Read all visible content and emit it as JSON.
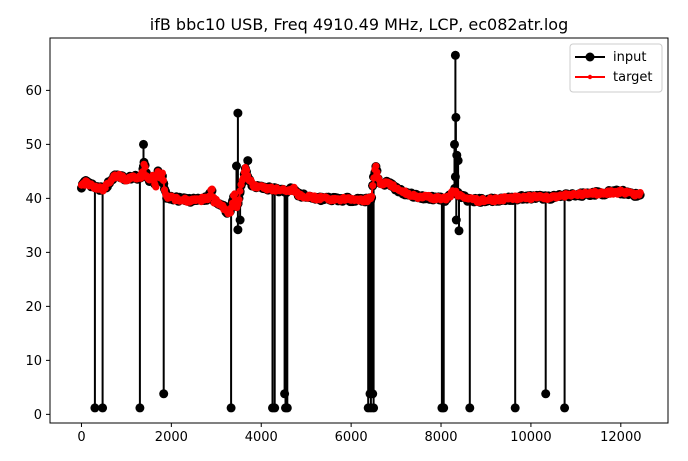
{
  "chart_data": {
    "type": "line",
    "title": "ifB bbc10 USB, Freq 4910.49 MHz, LCP, ec082atr.log",
    "xlabel": "",
    "ylabel": "",
    "xlim": [
      -700,
      13050
    ],
    "ylim": [
      -1.6,
      69.7
    ],
    "xticks": [
      0,
      2000,
      4000,
      6000,
      8000,
      10000,
      12000
    ],
    "xtick_labels": [
      "0",
      "2000",
      "4000",
      "6000",
      "8000",
      "10000",
      "12000"
    ],
    "yticks": [
      0,
      10,
      20,
      30,
      40,
      50,
      60
    ],
    "ytick_labels": [
      "0",
      "10",
      "20",
      "30",
      "40",
      "50",
      "60"
    ],
    "grid": false,
    "legend_position": "top-right",
    "colors": {
      "input": "#000000",
      "target": "#ff0000"
    },
    "series": [
      {
        "name": "input",
        "marker": "large-circle",
        "baseline": [
          [
            0,
            42.3
          ],
          [
            100,
            43
          ],
          [
            200,
            42.5
          ],
          [
            300,
            42
          ],
          [
            400,
            41.8
          ],
          [
            500,
            41.7
          ],
          [
            600,
            42.8
          ],
          [
            700,
            43.8
          ],
          [
            800,
            44.3
          ],
          [
            900,
            43.9
          ],
          [
            1000,
            43.5
          ],
          [
            1100,
            43.8
          ],
          [
            1200,
            43.9
          ],
          [
            1300,
            43.8
          ],
          [
            1350,
            44.5
          ],
          [
            1400,
            46.8
          ],
          [
            1450,
            44
          ],
          [
            1500,
            43.3
          ],
          [
            1600,
            44.2
          ],
          [
            1650,
            42
          ],
          [
            1700,
            44.8
          ],
          [
            1750,
            43.5
          ],
          [
            1800,
            44.5
          ],
          [
            1850,
            41.5
          ],
          [
            1900,
            40.3
          ],
          [
            2000,
            40
          ],
          [
            2200,
            39.8
          ],
          [
            2400,
            39.6
          ],
          [
            2600,
            39.7
          ],
          [
            2800,
            40
          ],
          [
            2900,
            41.5
          ],
          [
            2950,
            39.5
          ],
          [
            3000,
            39.4
          ],
          [
            3100,
            39
          ],
          [
            3200,
            38
          ],
          [
            3300,
            37
          ],
          [
            3350,
            39
          ],
          [
            3400,
            41
          ],
          [
            3450,
            38.5
          ],
          [
            3500,
            39.5
          ],
          [
            3550,
            42.5
          ],
          [
            3600,
            43.5
          ],
          [
            3650,
            45.5
          ],
          [
            3700,
            44
          ],
          [
            3800,
            42.5
          ],
          [
            3900,
            42.3
          ],
          [
            4000,
            42
          ],
          [
            4200,
            41.8
          ],
          [
            4400,
            41.5
          ],
          [
            4600,
            41.3
          ],
          [
            4700,
            42
          ],
          [
            4800,
            40.8
          ],
          [
            5000,
            40.3
          ],
          [
            5200,
            40.1
          ],
          [
            5400,
            39.9
          ],
          [
            5600,
            39.9
          ],
          [
            5800,
            39.8
          ],
          [
            6000,
            39.8
          ],
          [
            6200,
            39.7
          ],
          [
            6350,
            39.7
          ],
          [
            6450,
            40
          ],
          [
            6500,
            44
          ],
          [
            6550,
            46
          ],
          [
            6600,
            43.5
          ],
          [
            6700,
            42.5
          ],
          [
            6800,
            43
          ],
          [
            6900,
            42.5
          ],
          [
            7000,
            41.8
          ],
          [
            7200,
            41
          ],
          [
            7400,
            40.5
          ],
          [
            7600,
            40.2
          ],
          [
            7800,
            40.1
          ],
          [
            8000,
            40
          ],
          [
            8100,
            39.8
          ],
          [
            8200,
            40.5
          ],
          [
            8300,
            41.5
          ],
          [
            8400,
            40.5
          ],
          [
            8500,
            40.2
          ],
          [
            8600,
            39.8
          ],
          [
            8800,
            39.6
          ],
          [
            9000,
            39.7
          ],
          [
            9200,
            39.8
          ],
          [
            9400,
            39.9
          ],
          [
            9600,
            40
          ],
          [
            9800,
            40.2
          ],
          [
            10000,
            40.2
          ],
          [
            10200,
            40.2
          ],
          [
            10400,
            40.2
          ],
          [
            10600,
            40.3
          ],
          [
            10800,
            40.5
          ],
          [
            11000,
            40.6
          ],
          [
            11200,
            40.8
          ],
          [
            11400,
            40.9
          ],
          [
            11600,
            41
          ],
          [
            11800,
            41.1
          ],
          [
            12000,
            41.2
          ],
          [
            12200,
            41
          ],
          [
            12350,
            40.6
          ],
          [
            12450,
            40.7
          ]
        ],
        "spikes": [
          [
            300,
            1.2
          ],
          [
            470,
            1.2
          ],
          [
            1300,
            1.2
          ],
          [
            1380,
            50
          ],
          [
            1830,
            3.8
          ],
          [
            3330,
            1.2
          ],
          [
            3480,
            55.8
          ],
          [
            3450,
            46
          ],
          [
            3480,
            34.2
          ],
          [
            3530,
            36
          ],
          [
            3700,
            47
          ],
          [
            4250,
            1.2
          ],
          [
            4300,
            1.2
          ],
          [
            4520,
            3.8
          ],
          [
            4540,
            1.2
          ],
          [
            4580,
            1.2
          ],
          [
            6380,
            1.2
          ],
          [
            6420,
            3.8
          ],
          [
            6440,
            1.2
          ],
          [
            6480,
            3.8
          ],
          [
            6500,
            1.2
          ],
          [
            8020,
            1.2
          ],
          [
            8060,
            1.2
          ],
          [
            8320,
            66.5
          ],
          [
            8330,
            55
          ],
          [
            8300,
            50
          ],
          [
            8350,
            48
          ],
          [
            8380,
            47
          ],
          [
            8320,
            44
          ],
          [
            8340,
            36
          ],
          [
            8400,
            34
          ],
          [
            8640,
            1.2
          ],
          [
            9650,
            1.2
          ],
          [
            10330,
            3.8
          ],
          [
            10750,
            1.2
          ]
        ]
      },
      {
        "name": "target",
        "marker": "small-dot",
        "baseline": [
          [
            0,
            42.3
          ],
          [
            100,
            43
          ],
          [
            200,
            42.5
          ],
          [
            300,
            42
          ],
          [
            400,
            41.8
          ],
          [
            500,
            41.7
          ],
          [
            600,
            42.8
          ],
          [
            700,
            43.8
          ],
          [
            800,
            44.3
          ],
          [
            900,
            43.9
          ],
          [
            1000,
            43.5
          ],
          [
            1100,
            43.8
          ],
          [
            1200,
            43.9
          ],
          [
            1300,
            43.8
          ],
          [
            1350,
            44.5
          ],
          [
            1400,
            46.8
          ],
          [
            1450,
            44
          ],
          [
            1500,
            43.3
          ],
          [
            1600,
            44.2
          ],
          [
            1650,
            42
          ],
          [
            1700,
            44.8
          ],
          [
            1750,
            43.5
          ],
          [
            1800,
            44.5
          ],
          [
            1850,
            41.5
          ],
          [
            1900,
            40.3
          ],
          [
            2000,
            40
          ],
          [
            2200,
            39.8
          ],
          [
            2400,
            39.6
          ],
          [
            2600,
            39.7
          ],
          [
            2800,
            40
          ],
          [
            2900,
            41.5
          ],
          [
            2950,
            39.5
          ],
          [
            3000,
            39.4
          ],
          [
            3100,
            39
          ],
          [
            3200,
            38
          ],
          [
            3300,
            37
          ],
          [
            3350,
            39
          ],
          [
            3400,
            41
          ],
          [
            3450,
            38.5
          ],
          [
            3500,
            39.5
          ],
          [
            3550,
            42.5
          ],
          [
            3600,
            43.5
          ],
          [
            3650,
            45.5
          ],
          [
            3700,
            44
          ],
          [
            3800,
            42.5
          ],
          [
            3900,
            42.3
          ],
          [
            4000,
            42
          ],
          [
            4200,
            41.8
          ],
          [
            4400,
            41.5
          ],
          [
            4600,
            41.3
          ],
          [
            4700,
            42
          ],
          [
            4800,
            40.8
          ],
          [
            5000,
            40.3
          ],
          [
            5200,
            40.1
          ],
          [
            5400,
            39.9
          ],
          [
            5600,
            39.9
          ],
          [
            5800,
            39.8
          ],
          [
            6000,
            39.8
          ],
          [
            6200,
            39.7
          ],
          [
            6350,
            39.7
          ],
          [
            6450,
            40
          ],
          [
            6500,
            44
          ],
          [
            6550,
            46
          ],
          [
            6600,
            43.5
          ],
          [
            6700,
            42.5
          ],
          [
            6800,
            43
          ],
          [
            6900,
            42.5
          ],
          [
            7000,
            41.8
          ],
          [
            7200,
            41
          ],
          [
            7400,
            40.5
          ],
          [
            7600,
            40.2
          ],
          [
            7800,
            40.1
          ],
          [
            8000,
            40
          ],
          [
            8100,
            39.8
          ],
          [
            8200,
            40.5
          ],
          [
            8300,
            41.5
          ],
          [
            8400,
            40.5
          ],
          [
            8500,
            40.2
          ],
          [
            8600,
            39.8
          ],
          [
            8800,
            39.6
          ],
          [
            9000,
            39.7
          ],
          [
            9200,
            39.8
          ],
          [
            9400,
            39.9
          ],
          [
            9600,
            40
          ],
          [
            9800,
            40.2
          ],
          [
            10000,
            40.2
          ],
          [
            10200,
            40.2
          ],
          [
            10400,
            40.2
          ],
          [
            10600,
            40.3
          ],
          [
            10800,
            40.5
          ],
          [
            11000,
            40.6
          ],
          [
            11200,
            40.8
          ],
          [
            11400,
            40.9
          ],
          [
            11600,
            41
          ],
          [
            11800,
            41.1
          ],
          [
            12000,
            41.2
          ],
          [
            12200,
            41
          ],
          [
            12350,
            40.6
          ],
          [
            12450,
            40.7
          ]
        ]
      }
    ]
  }
}
